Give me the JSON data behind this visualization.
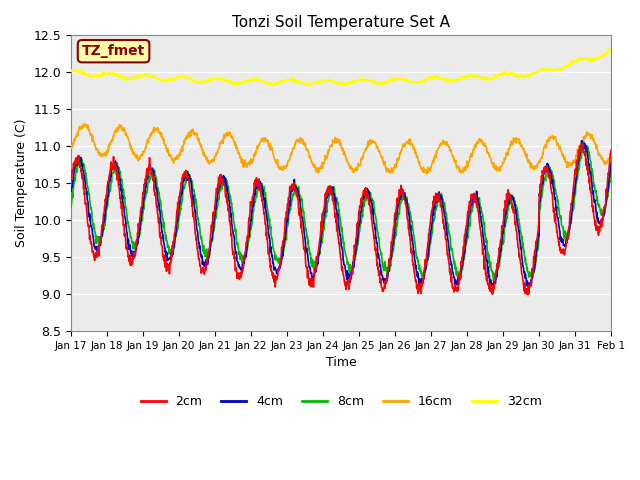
{
  "title": "Tonzi Soil Temperature Set A",
  "ylabel": "Soil Temperature (C)",
  "xlabel": "Time",
  "ylim": [
    8.5,
    12.5
  ],
  "annotation_text": "TZ_fmet",
  "line_colors": {
    "2cm": "#FF0000",
    "4cm": "#0000CC",
    "8cm": "#00BB00",
    "16cm": "#FFA500",
    "32cm": "#FFFF00"
  },
  "legend_labels": [
    "2cm",
    "4cm",
    "8cm",
    "16cm",
    "32cm"
  ],
  "x_tick_labels": [
    "Jan 17",
    "Jan 18",
    "Jan 19",
    "Jan 20",
    "Jan 21",
    "Jan 22",
    "Jan 23",
    "Jan 24",
    "Jan 25",
    "Jan 26",
    "Jan 27",
    "Jan 28",
    "Jan 29",
    "Jan 30",
    "Jan 31",
    "Feb 1"
  ],
  "n_points": 1440,
  "days": 15
}
